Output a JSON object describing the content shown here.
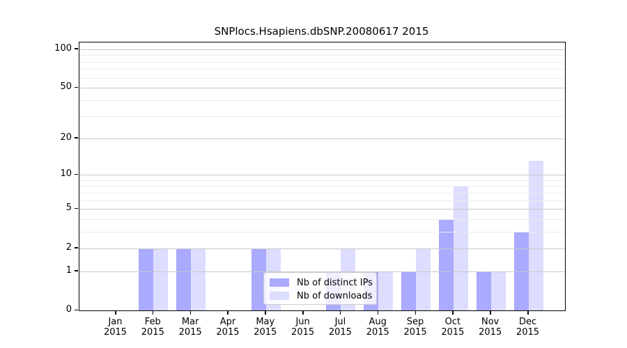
{
  "chart_data": {
    "type": "bar",
    "title": "SNPlocs.Hsapiens.dbSNP.20080617 2015",
    "x_categories": [
      {
        "month": "Jan",
        "year": "2015"
      },
      {
        "month": "Feb",
        "year": "2015"
      },
      {
        "month": "Mar",
        "year": "2015"
      },
      {
        "month": "Apr",
        "year": "2015"
      },
      {
        "month": "May",
        "year": "2015"
      },
      {
        "month": "Jun",
        "year": "2015"
      },
      {
        "month": "Jul",
        "year": "2015"
      },
      {
        "month": "Aug",
        "year": "2015"
      },
      {
        "month": "Sep",
        "year": "2015"
      },
      {
        "month": "Oct",
        "year": "2015"
      },
      {
        "month": "Nov",
        "year": "2015"
      },
      {
        "month": "Dec",
        "year": "2015"
      }
    ],
    "series": [
      {
        "name": "Nb of distinct IPs",
        "color": "#aaaaff",
        "values": [
          0,
          2,
          2,
          0,
          2,
          0,
          1,
          1,
          1,
          4,
          1,
          3
        ]
      },
      {
        "name": "Nb of downloads",
        "color": "#ddddff",
        "values": [
          0,
          2,
          2,
          0,
          2,
          0,
          2,
          1,
          2,
          8,
          1,
          13
        ]
      }
    ],
    "y_axis": {
      "scale": "log1p",
      "tick_values": [
        0,
        1,
        2,
        5,
        10,
        20,
        50,
        100
      ],
      "tick_labels": [
        "0",
        "1",
        "2",
        "5",
        "10",
        "20",
        "50",
        "100"
      ],
      "minor_gridline_values": [
        3,
        4,
        6,
        7,
        8,
        9,
        30,
        40,
        60,
        70,
        80,
        90
      ],
      "ymax": 113
    },
    "grid": true,
    "legend_position": "inside-bottom-center",
    "colors": {
      "major_grid": "#c8c8c8",
      "minor_grid": "#ebebeb",
      "axis": "#000000",
      "text": "#000000",
      "legend_border": "#cccccc"
    }
  }
}
